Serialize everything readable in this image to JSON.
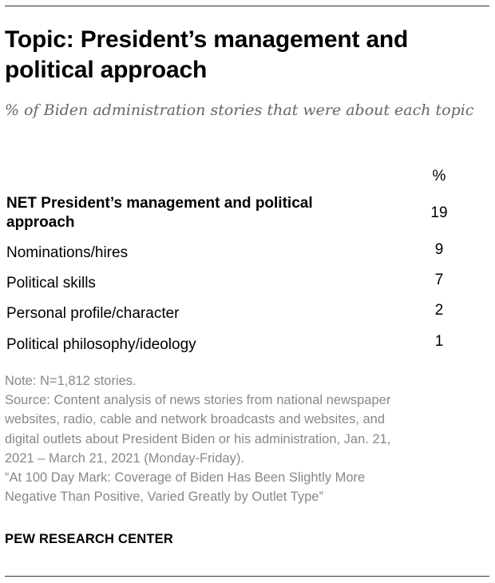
{
  "title": "Topic: President’s management and political approach",
  "subtitle": "% of Biden administration stories that were about each topic",
  "chart_data": {
    "type": "table",
    "column_header": "%",
    "rows": [
      {
        "label": "NET President’s management and political approach",
        "value": 19,
        "net": true
      },
      {
        "label": "Nominations/hires",
        "value": 9
      },
      {
        "label": "Political skills",
        "value": 7
      },
      {
        "label": "Personal profile/character",
        "value": 2
      },
      {
        "label": "Political philosophy/ideology",
        "value": 1
      }
    ]
  },
  "notes": {
    "note": "Note: N=1,812 stories.",
    "source_lines": [
      "Source: Content analysis of news stories from national newspaper",
      "websites, radio, cable and network broadcasts and websites, and",
      "digital outlets about President Biden or his administration, Jan. 21,",
      "2021 – March 21, 2021 (Monday-Friday).",
      "“At 100 Day Mark: Coverage of Biden Has Been Slightly More",
      "Negative Than Positive, Varied Greatly by Outlet Type”"
    ]
  },
  "org_name": "PEW RESEARCH CENTER"
}
